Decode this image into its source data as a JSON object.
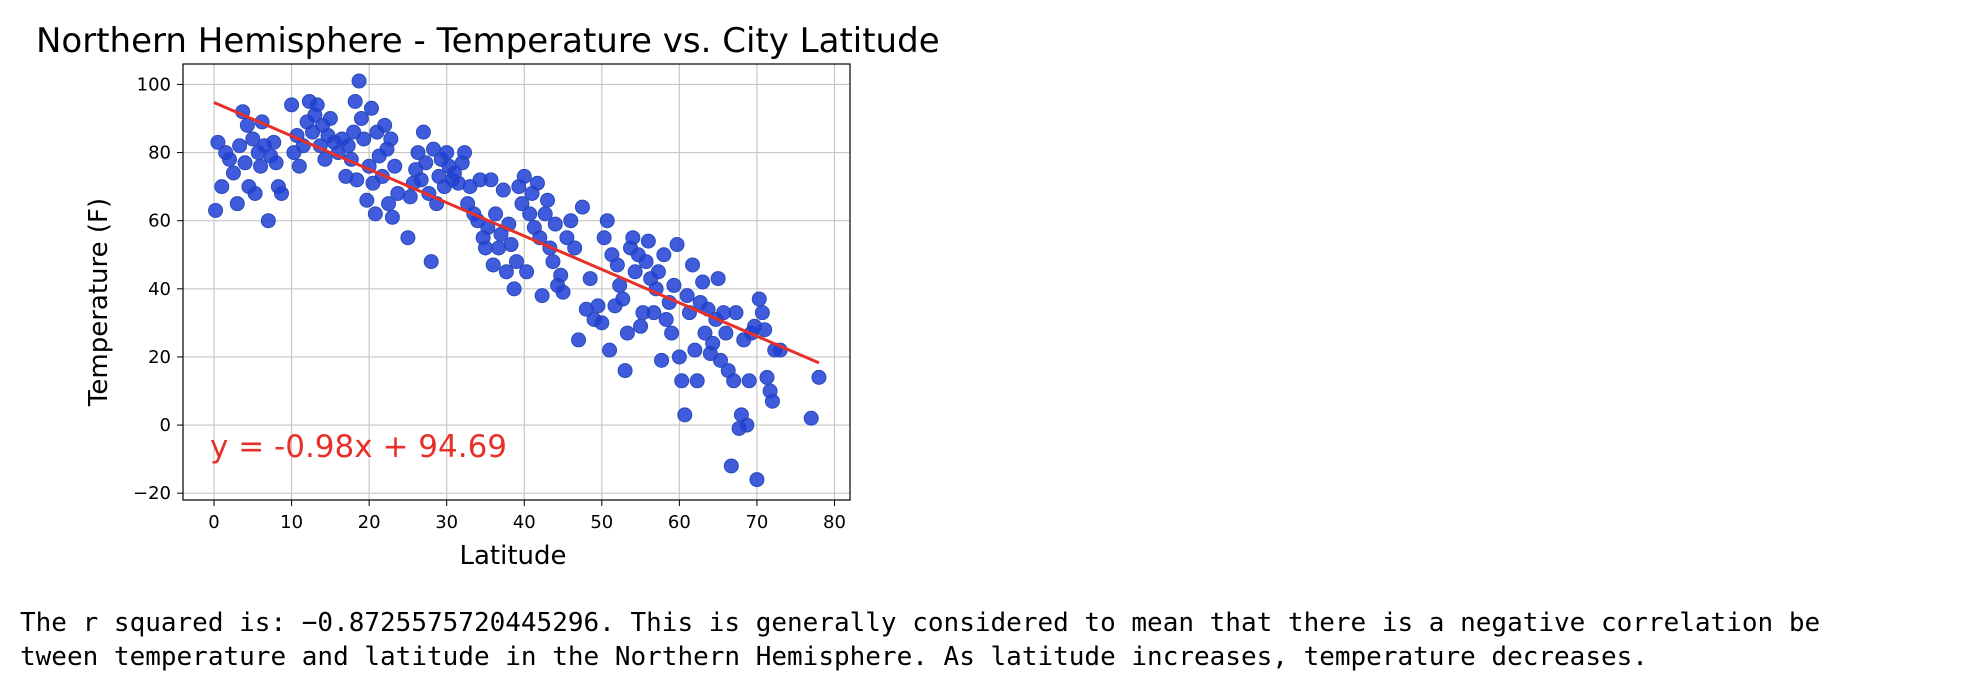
{
  "chart_data": {
    "type": "scatter",
    "title": "Northern Hemisphere - Temperature vs. City Latitude",
    "xlabel": "Latitude",
    "ylabel": "Temperature (F)",
    "xlim": [
      -4,
      82
    ],
    "ylim": [
      -22,
      106
    ],
    "xticks": [
      0,
      10,
      20,
      30,
      40,
      50,
      60,
      70,
      80
    ],
    "yticks": [
      -20,
      0,
      20,
      40,
      60,
      80,
      100
    ],
    "grid": true,
    "point_color": "#1f3fd6",
    "point_edge_color": "#2a4bb8",
    "regression": {
      "slope": -0.98,
      "intercept": 94.69,
      "x_range": [
        0,
        78
      ],
      "color": "#e8302b",
      "equation_label": "y = -0.98x + 94.69"
    },
    "points": [
      [
        0.2,
        63
      ],
      [
        0.5,
        83
      ],
      [
        1,
        70
      ],
      [
        1.5,
        80
      ],
      [
        2,
        78
      ],
      [
        2.5,
        74
      ],
      [
        3,
        65
      ],
      [
        3.3,
        82
      ],
      [
        3.7,
        92
      ],
      [
        4,
        77
      ],
      [
        4.3,
        88
      ],
      [
        4.5,
        70
      ],
      [
        5,
        84
      ],
      [
        5.3,
        68
      ],
      [
        5.7,
        80
      ],
      [
        6,
        76
      ],
      [
        6.2,
        89
      ],
      [
        6.5,
        82
      ],
      [
        7,
        60
      ],
      [
        7.3,
        79
      ],
      [
        7.7,
        83
      ],
      [
        8,
        77
      ],
      [
        8.3,
        70
      ],
      [
        8.7,
        68
      ],
      [
        10,
        94
      ],
      [
        10.3,
        80
      ],
      [
        10.7,
        85
      ],
      [
        11,
        76
      ],
      [
        11.5,
        82
      ],
      [
        12,
        89
      ],
      [
        12.3,
        95
      ],
      [
        12.7,
        86
      ],
      [
        13,
        91
      ],
      [
        13.3,
        94
      ],
      [
        13.7,
        82
      ],
      [
        14,
        88
      ],
      [
        14.3,
        78
      ],
      [
        14.7,
        85
      ],
      [
        15,
        90
      ],
      [
        15.5,
        83
      ],
      [
        16,
        80
      ],
      [
        16.5,
        84
      ],
      [
        17,
        73
      ],
      [
        17.3,
        82
      ],
      [
        17.7,
        78
      ],
      [
        18,
        86
      ],
      [
        18.2,
        95
      ],
      [
        18.4,
        72
      ],
      [
        18.7,
        101
      ],
      [
        19,
        90
      ],
      [
        19.3,
        84
      ],
      [
        19.7,
        66
      ],
      [
        20,
        76
      ],
      [
        20.3,
        93
      ],
      [
        20.5,
        71
      ],
      [
        20.8,
        62
      ],
      [
        21,
        86
      ],
      [
        21.3,
        79
      ],
      [
        21.7,
        73
      ],
      [
        22,
        88
      ],
      [
        22.3,
        81
      ],
      [
        22.5,
        65
      ],
      [
        22.8,
        84
      ],
      [
        23,
        61
      ],
      [
        23.3,
        76
      ],
      [
        23.7,
        68
      ],
      [
        25,
        55
      ],
      [
        25.3,
        67
      ],
      [
        25.7,
        71
      ],
      [
        26,
        75
      ],
      [
        26.3,
        80
      ],
      [
        26.7,
        72
      ],
      [
        27,
        86
      ],
      [
        27.3,
        77
      ],
      [
        27.7,
        68
      ],
      [
        28,
        48
      ],
      [
        28.3,
        81
      ],
      [
        28.7,
        65
      ],
      [
        29,
        73
      ],
      [
        29.3,
        78
      ],
      [
        29.7,
        70
      ],
      [
        30,
        80
      ],
      [
        30.3,
        76
      ],
      [
        30.7,
        72
      ],
      [
        31,
        74
      ],
      [
        31.5,
        71
      ],
      [
        32,
        77
      ],
      [
        32.3,
        80
      ],
      [
        32.7,
        65
      ],
      [
        33,
        70
      ],
      [
        33.5,
        62
      ],
      [
        34,
        60
      ],
      [
        34.3,
        72
      ],
      [
        34.7,
        55
      ],
      [
        35,
        52
      ],
      [
        35.3,
        58
      ],
      [
        35.7,
        72
      ],
      [
        36,
        47
      ],
      [
        36.3,
        62
      ],
      [
        36.7,
        52
      ],
      [
        37,
        56
      ],
      [
        37.3,
        69
      ],
      [
        37.7,
        45
      ],
      [
        38,
        59
      ],
      [
        38.3,
        53
      ],
      [
        38.7,
        40
      ],
      [
        39,
        48
      ],
      [
        39.3,
        70
      ],
      [
        39.7,
        65
      ],
      [
        40,
        73
      ],
      [
        40.3,
        45
      ],
      [
        40.7,
        62
      ],
      [
        41,
        68
      ],
      [
        41.3,
        58
      ],
      [
        41.7,
        71
      ],
      [
        42,
        55
      ],
      [
        42.3,
        38
      ],
      [
        42.7,
        62
      ],
      [
        43,
        66
      ],
      [
        43.3,
        52
      ],
      [
        43.7,
        48
      ],
      [
        44,
        59
      ],
      [
        44.3,
        41
      ],
      [
        44.7,
        44
      ],
      [
        45,
        39
      ],
      [
        45.5,
        55
      ],
      [
        46,
        60
      ],
      [
        46.5,
        52
      ],
      [
        47,
        25
      ],
      [
        47.5,
        64
      ],
      [
        48,
        34
      ],
      [
        48.5,
        43
      ],
      [
        49,
        31
      ],
      [
        49.5,
        35
      ],
      [
        50,
        30
      ],
      [
        50.3,
        55
      ],
      [
        50.7,
        60
      ],
      [
        51,
        22
      ],
      [
        51.3,
        50
      ],
      [
        51.7,
        35
      ],
      [
        52,
        47
      ],
      [
        52.3,
        41
      ],
      [
        52.7,
        37
      ],
      [
        53,
        16
      ],
      [
        53.3,
        27
      ],
      [
        53.7,
        52
      ],
      [
        54,
        55
      ],
      [
        54.3,
        45
      ],
      [
        54.7,
        50
      ],
      [
        55,
        29
      ],
      [
        55.3,
        33
      ],
      [
        55.7,
        48
      ],
      [
        56,
        54
      ],
      [
        56.3,
        43
      ],
      [
        56.7,
        33
      ],
      [
        57,
        40
      ],
      [
        57.3,
        45
      ],
      [
        57.7,
        19
      ],
      [
        58,
        50
      ],
      [
        58.3,
        31
      ],
      [
        58.7,
        36
      ],
      [
        59,
        27
      ],
      [
        59.3,
        41
      ],
      [
        59.7,
        53
      ],
      [
        60,
        20
      ],
      [
        60.3,
        13
      ],
      [
        60.7,
        3
      ],
      [
        61,
        38
      ],
      [
        61.3,
        33
      ],
      [
        61.7,
        47
      ],
      [
        62,
        22
      ],
      [
        62.3,
        13
      ],
      [
        62.7,
        36
      ],
      [
        63,
        42
      ],
      [
        63.3,
        27
      ],
      [
        63.7,
        34
      ],
      [
        64,
        21
      ],
      [
        64.3,
        24
      ],
      [
        64.7,
        31
      ],
      [
        65,
        43
      ],
      [
        65.3,
        19
      ],
      [
        65.7,
        33
      ],
      [
        66,
        27
      ],
      [
        66.3,
        16
      ],
      [
        66.7,
        -12
      ],
      [
        67,
        13
      ],
      [
        67.3,
        33
      ],
      [
        67.7,
        -1
      ],
      [
        68,
        3
      ],
      [
        68.3,
        25
      ],
      [
        68.7,
        0
      ],
      [
        69,
        13
      ],
      [
        69.3,
        27
      ],
      [
        69.7,
        29
      ],
      [
        70,
        -16
      ],
      [
        70.3,
        37
      ],
      [
        70.7,
        33
      ],
      [
        71,
        28
      ],
      [
        71.3,
        14
      ],
      [
        71.7,
        10
      ],
      [
        72,
        7
      ],
      [
        72.3,
        22
      ],
      [
        73,
        22
      ],
      [
        77,
        2
      ],
      [
        78,
        14
      ]
    ]
  },
  "output_text": "The r squared is: −0.8725575720445296. This is generally considered to mean that there is a negative correlation be\ntween temperature and latitude in the Northern Hemisphere. As latitude increases, temperature decreases."
}
